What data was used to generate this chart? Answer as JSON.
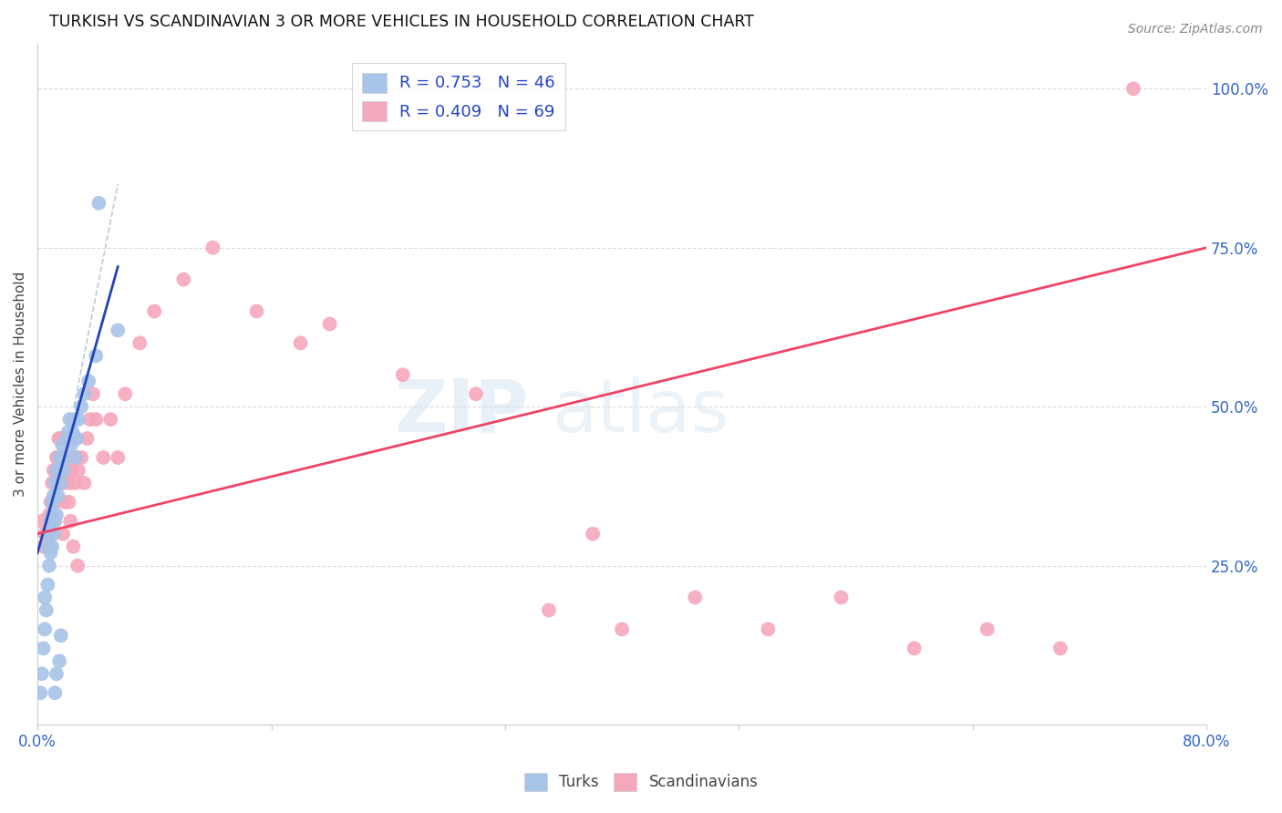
{
  "title": "TURKISH VS SCANDINAVIAN 3 OR MORE VEHICLES IN HOUSEHOLD CORRELATION CHART",
  "source": "Source: ZipAtlas.com",
  "ylabel": "3 or more Vehicles in Household",
  "legend_label1": "R = 0.753   N = 46",
  "legend_label2": "R = 0.409   N = 69",
  "legend_turks": "Turks",
  "legend_scandinavians": "Scandinavians",
  "xlim": [
    0.0,
    80.0
  ],
  "ylim": [
    0.0,
    107.0
  ],
  "watermark_text": "ZIPatlas",
  "blue_color": "#a8c4e8",
  "pink_color": "#f5a8bc",
  "blue_line_color": "#2244bb",
  "pink_line_color": "#ee4466",
  "dash_color": "#bbccdd",
  "turks_x": [
    0.2,
    0.3,
    0.4,
    0.5,
    0.5,
    0.6,
    0.7,
    0.7,
    0.8,
    0.8,
    0.9,
    0.9,
    1.0,
    1.0,
    1.0,
    1.1,
    1.1,
    1.2,
    1.2,
    1.3,
    1.3,
    1.4,
    1.5,
    1.6,
    1.7,
    1.8,
    1.9,
    2.0,
    2.1,
    2.2,
    2.3,
    2.4,
    2.5,
    2.6,
    2.7,
    2.8,
    3.0,
    3.2,
    3.5,
    4.0,
    4.2,
    5.5,
    1.5,
    1.6,
    1.3,
    1.2
  ],
  "turks_y": [
    5.0,
    8.0,
    12.0,
    15.0,
    20.0,
    18.0,
    22.0,
    28.0,
    25.0,
    30.0,
    27.0,
    32.0,
    28.0,
    33.0,
    35.0,
    30.0,
    36.0,
    32.0,
    38.0,
    33.0,
    40.0,
    36.0,
    42.0,
    38.0,
    44.0,
    40.0,
    42.0,
    45.0,
    46.0,
    48.0,
    44.0,
    46.0,
    48.0,
    42.0,
    45.0,
    48.0,
    50.0,
    52.0,
    54.0,
    58.0,
    82.0,
    62.0,
    10.0,
    14.0,
    8.0,
    5.0
  ],
  "scand_x": [
    0.3,
    0.5,
    0.7,
    0.8,
    0.9,
    1.0,
    1.1,
    1.2,
    1.3,
    1.4,
    1.5,
    1.6,
    1.7,
    1.8,
    1.9,
    2.0,
    2.1,
    2.2,
    2.3,
    2.4,
    2.5,
    2.6,
    2.7,
    2.8,
    3.0,
    3.2,
    3.4,
    3.6,
    3.8,
    4.0,
    4.5,
    5.0,
    5.5,
    6.0,
    7.0,
    8.0,
    10.0,
    12.0,
    15.0,
    18.0,
    20.0,
    25.0,
    30.0,
    35.0,
    38.0,
    40.0,
    45.0,
    50.0,
    55.0,
    60.0,
    65.0,
    70.0,
    75.0,
    0.4,
    0.6,
    1.05,
    1.15,
    1.25,
    1.35,
    1.45,
    1.55,
    1.65,
    1.75,
    1.85,
    2.05,
    2.15,
    2.25,
    2.45,
    2.75
  ],
  "scand_y": [
    32.0,
    30.0,
    28.0,
    33.0,
    35.0,
    38.0,
    40.0,
    35.0,
    42.0,
    38.0,
    40.0,
    45.0,
    42.0,
    38.0,
    40.0,
    42.0,
    45.0,
    38.0,
    40.0,
    42.0,
    45.0,
    38.0,
    42.0,
    40.0,
    42.0,
    38.0,
    45.0,
    48.0,
    52.0,
    48.0,
    42.0,
    48.0,
    42.0,
    52.0,
    60.0,
    65.0,
    70.0,
    75.0,
    65.0,
    60.0,
    63.0,
    55.0,
    52.0,
    18.0,
    30.0,
    15.0,
    20.0,
    15.0,
    20.0,
    12.0,
    15.0,
    12.0,
    100.0,
    28.0,
    30.0,
    32.0,
    35.0,
    38.0,
    42.0,
    45.0,
    38.0,
    40.0,
    30.0,
    35.0,
    40.0,
    35.0,
    32.0,
    28.0,
    25.0
  ],
  "blue_trendline_x": [
    0.0,
    5.5
  ],
  "blue_trendline_y": [
    27.0,
    72.0
  ],
  "pink_trendline_x": [
    0.0,
    80.0
  ],
  "pink_trendline_y": [
    30.0,
    75.0
  ],
  "dash_line_x": [
    2.5,
    5.5
  ],
  "dash_line_y": [
    50.0,
    85.0
  ]
}
